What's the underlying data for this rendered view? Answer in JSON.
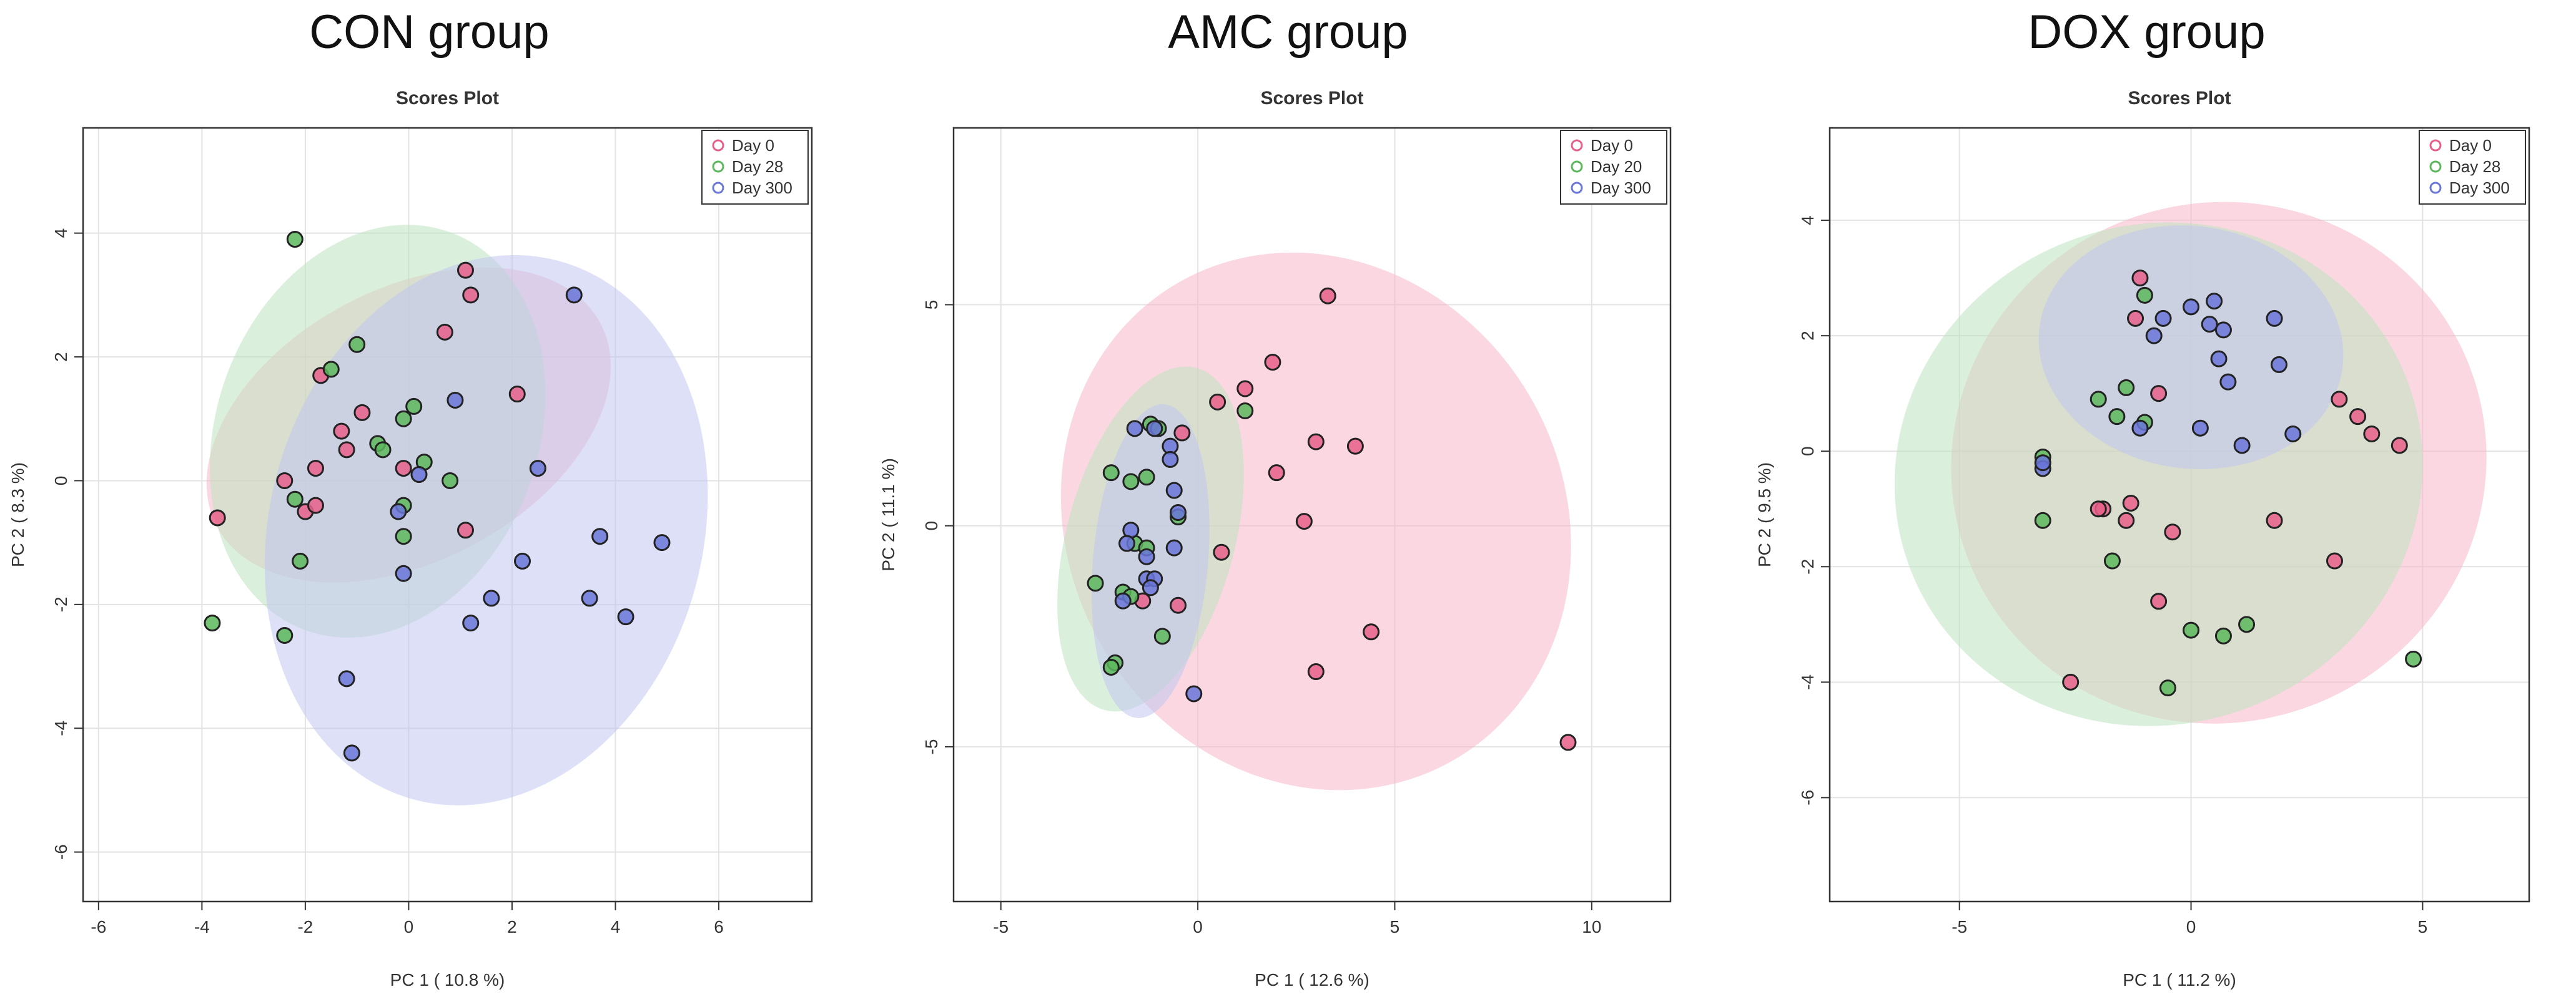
{
  "chart_data": [
    {
      "type": "scatter",
      "group_title": "CON group",
      "title": "Scores Plot",
      "xlabel": "PC 1 ( 10.8 %)",
      "ylabel": "PC 2 ( 8.3 %)",
      "xlim": [
        -6.3,
        7.8
      ],
      "ylim": [
        -6.8,
        5.7
      ],
      "xticks": [
        -6,
        -4,
        -2,
        0,
        2,
        4,
        6
      ],
      "yticks": [
        -6,
        -4,
        -2,
        0,
        2,
        4
      ],
      "legend": "top-right",
      "series": [
        {
          "name": "Day 0",
          "color": "#e8608a",
          "fill": "#f6b7c9",
          "ellipse": {
            "cx": 0.0,
            "cy": 0.9,
            "rx": 4.2,
            "ry": 2.2,
            "angle_deg": 28
          },
          "points": [
            [
              -3.7,
              -0.6
            ],
            [
              -2.4,
              0.0
            ],
            [
              -2.0,
              -0.5
            ],
            [
              -1.8,
              -0.4
            ],
            [
              -1.8,
              0.2
            ],
            [
              -1.7,
              1.7
            ],
            [
              -1.3,
              0.8
            ],
            [
              -1.2,
              0.5
            ],
            [
              -0.9,
              1.1
            ],
            [
              -0.1,
              0.2
            ],
            [
              0.7,
              2.4
            ],
            [
              1.1,
              3.4
            ],
            [
              1.2,
              3.0
            ],
            [
              1.1,
              -0.8
            ],
            [
              2.1,
              1.4
            ]
          ]
        },
        {
          "name": "Day 28",
          "color": "#5cb85c",
          "fill": "#bde3c0",
          "ellipse": {
            "cx": -0.6,
            "cy": 0.8,
            "rx": 4.1,
            "ry": 2.6,
            "angle_deg": 70
          },
          "points": [
            [
              -2.2,
              3.9
            ],
            [
              -1.5,
              1.8
            ],
            [
              -1.0,
              2.2
            ],
            [
              -3.8,
              -2.3
            ],
            [
              -2.4,
              -2.5
            ],
            [
              -2.1,
              -1.3
            ],
            [
              -2.2,
              -0.3
            ],
            [
              -0.6,
              0.6
            ],
            [
              -0.5,
              0.5
            ],
            [
              -0.1,
              1.0
            ],
            [
              0.1,
              1.2
            ],
            [
              0.3,
              0.3
            ],
            [
              0.8,
              0.0
            ],
            [
              -0.1,
              -0.4
            ],
            [
              -0.1,
              -0.9
            ]
          ]
        },
        {
          "name": "Day 300",
          "color": "#6a76d8",
          "fill": "#c1c7f0",
          "ellipse": {
            "cx": 1.5,
            "cy": -0.8,
            "rx": 5.4,
            "ry": 3.5,
            "angle_deg": 75
          },
          "points": [
            [
              3.2,
              3.0
            ],
            [
              0.9,
              1.3
            ],
            [
              0.2,
              0.1
            ],
            [
              -0.2,
              -0.5
            ],
            [
              -0.1,
              -1.5
            ],
            [
              2.5,
              0.2
            ],
            [
              3.7,
              -0.9
            ],
            [
              4.9,
              -1.0
            ],
            [
              2.2,
              -1.3
            ],
            [
              1.6,
              -1.9
            ],
            [
              1.2,
              -2.3
            ],
            [
              3.5,
              -1.9
            ],
            [
              4.2,
              -2.2
            ],
            [
              -1.2,
              -3.2
            ],
            [
              -1.1,
              -4.4
            ]
          ]
        }
      ]
    },
    {
      "type": "scatter",
      "group_title": "AMC group",
      "title": "Scores Plot",
      "xlabel": "PC 1 ( 12.6 %)",
      "ylabel": "PC 2 ( 11.1 %)",
      "xlim": [
        -6.2,
        12.0
      ],
      "ylim": [
        -8.5,
        9.0
      ],
      "xticks": [
        -5,
        0,
        5,
        10
      ],
      "yticks": [
        -5,
        0,
        5
      ],
      "legend": "top-right",
      "series": [
        {
          "name": "Day 0",
          "color": "#e8608a",
          "fill": "#f6b7c9",
          "ellipse": {
            "cx": 3.0,
            "cy": 0.1,
            "rx": 7.0,
            "ry": 5.6,
            "angle_deg": -60
          },
          "points": [
            [
              3.3,
              5.2
            ],
            [
              1.9,
              3.7
            ],
            [
              1.2,
              3.1
            ],
            [
              0.5,
              2.8
            ],
            [
              4.0,
              1.8
            ],
            [
              3.0,
              1.9
            ],
            [
              2.0,
              1.2
            ],
            [
              2.7,
              0.1
            ],
            [
              0.6,
              -0.6
            ],
            [
              -0.4,
              2.1
            ],
            [
              -0.5,
              -1.8
            ],
            [
              -1.4,
              -1.7
            ],
            [
              4.4,
              -2.4
            ],
            [
              3.0,
              -3.3
            ],
            [
              9.4,
              -4.9
            ]
          ]
        },
        {
          "name": "Day 20",
          "color": "#5cb85c",
          "fill": "#bde3c0",
          "ellipse": {
            "cx": -1.2,
            "cy": -0.3,
            "rx": 4.5,
            "ry": 1.9,
            "angle_deg": 75
          },
          "points": [
            [
              1.2,
              2.6
            ],
            [
              -2.2,
              1.2
            ],
            [
              -1.7,
              1.0
            ],
            [
              -1.3,
              1.1
            ],
            [
              -1.2,
              2.3
            ],
            [
              -1.0,
              2.2
            ],
            [
              -1.6,
              -0.4
            ],
            [
              -1.3,
              -0.5
            ],
            [
              -0.5,
              0.2
            ],
            [
              -1.9,
              -1.5
            ],
            [
              -2.6,
              -1.3
            ],
            [
              -1.7,
              -1.6
            ],
            [
              -2.1,
              -3.1
            ],
            [
              -2.2,
              -3.2
            ],
            [
              -0.9,
              -2.5
            ]
          ]
        },
        {
          "name": "Day 300",
          "color": "#6a76d8",
          "fill": "#c1c7f0",
          "ellipse": {
            "cx": -1.2,
            "cy": -0.8,
            "rx": 4.0,
            "ry": 1.3,
            "angle_deg": 85
          },
          "points": [
            [
              -1.6,
              2.2
            ],
            [
              -1.1,
              2.2
            ],
            [
              -0.7,
              1.8
            ],
            [
              -0.7,
              1.5
            ],
            [
              -0.6,
              0.8
            ],
            [
              -0.5,
              0.3
            ],
            [
              -1.7,
              -0.1
            ],
            [
              -1.8,
              -0.4
            ],
            [
              -1.3,
              -0.7
            ],
            [
              -1.3,
              -1.2
            ],
            [
              -1.1,
              -1.2
            ],
            [
              -0.6,
              -0.5
            ],
            [
              -1.2,
              -1.4
            ],
            [
              -1.9,
              -1.7
            ],
            [
              -0.1,
              -3.8
            ]
          ]
        }
      ]
    },
    {
      "type": "scatter",
      "group_title": "DOX group",
      "title": "Scores Plot",
      "xlabel": "PC 1 ( 11.2 %)",
      "ylabel": "PC 2 ( 9.5 %)",
      "xlim": [
        -7.8,
        7.3
      ],
      "ylim": [
        -7.8,
        5.6
      ],
      "xticks": [
        -5,
        0,
        5
      ],
      "yticks": [
        -6,
        -4,
        -2,
        0,
        2,
        4
      ],
      "legend": "top-right",
      "series": [
        {
          "name": "Day 0",
          "color": "#e8608a",
          "fill": "#f6b7c9",
          "ellipse": {
            "cx": 0.6,
            "cy": -0.2,
            "rx": 5.8,
            "ry": 4.5,
            "angle_deg": 20
          },
          "points": [
            [
              -1.1,
              3.0
            ],
            [
              -1.2,
              2.3
            ],
            [
              3.2,
              0.9
            ],
            [
              3.6,
              0.6
            ],
            [
              3.9,
              0.3
            ],
            [
              4.5,
              0.1
            ],
            [
              -0.7,
              1.0
            ],
            [
              -1.9,
              -1.0
            ],
            [
              -2.0,
              -1.0
            ],
            [
              -1.3,
              -0.9
            ],
            [
              -1.4,
              -1.2
            ],
            [
              -0.4,
              -1.4
            ],
            [
              1.8,
              -1.2
            ],
            [
              3.1,
              -1.9
            ],
            [
              -0.7,
              -2.6
            ],
            [
              -2.6,
              -4.0
            ]
          ]
        },
        {
          "name": "Day 28",
          "color": "#5cb85c",
          "fill": "#bde3c0",
          "ellipse": {
            "cx": -0.7,
            "cy": -0.4,
            "rx": 5.4,
            "ry": 4.6,
            "angle_deg": -70
          },
          "points": [
            [
              -1.0,
              2.7
            ],
            [
              -2.0,
              0.9
            ],
            [
              -1.6,
              0.6
            ],
            [
              -1.0,
              0.5
            ],
            [
              -1.4,
              1.1
            ],
            [
              -3.2,
              -0.1
            ],
            [
              -3.2,
              -1.2
            ],
            [
              -1.7,
              -1.9
            ],
            [
              0.0,
              -3.1
            ],
            [
              0.7,
              -3.2
            ],
            [
              1.2,
              -3.0
            ],
            [
              -0.5,
              -4.1
            ],
            [
              4.8,
              -3.6
            ]
          ]
        },
        {
          "name": "Day 300",
          "color": "#6a76d8",
          "fill": "#c1c7f0",
          "ellipse": {
            "cx": 0.0,
            "cy": 1.8,
            "rx": 3.3,
            "ry": 2.1,
            "angle_deg": -8
          },
          "points": [
            [
              -0.6,
              2.3
            ],
            [
              -0.8,
              2.0
            ],
            [
              -1.1,
              0.4
            ],
            [
              0.0,
              2.5
            ],
            [
              0.5,
              2.6
            ],
            [
              0.4,
              2.2
            ],
            [
              0.7,
              2.1
            ],
            [
              0.6,
              1.6
            ],
            [
              0.8,
              1.2
            ],
            [
              1.8,
              2.3
            ],
            [
              1.9,
              1.5
            ],
            [
              0.2,
              0.4
            ],
            [
              1.1,
              0.1
            ],
            [
              2.2,
              0.3
            ],
            [
              -3.2,
              -0.3
            ],
            [
              -3.2,
              -0.2
            ]
          ]
        }
      ]
    }
  ]
}
